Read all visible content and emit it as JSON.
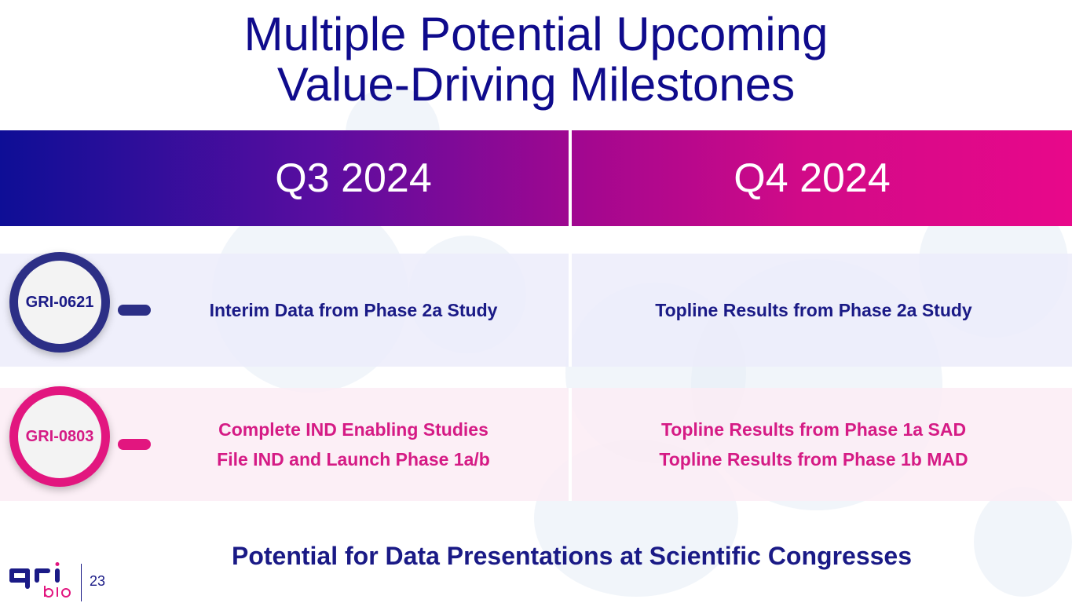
{
  "slide": {
    "title_line1": "Multiple Potential Upcoming",
    "title_line2": "Value-Driving Milestones",
    "q3_label": "Q3 2024",
    "q4_label": "Q4 2024",
    "footer": "Potential for Data Presentations at Scientific Congresses",
    "page_number": "23"
  },
  "rows": [
    {
      "program": "GRI-0621",
      "q3": [
        "Interim Data from Phase 2a Study"
      ],
      "q4": [
        "Topline Results from Phase 2a Study"
      ]
    },
    {
      "program": "GRI-0803",
      "q3": [
        "Complete IND Enabling Studies",
        "File IND and Launch Phase 1a/b"
      ],
      "q4": [
        "Topline Results from Phase 1a SAD",
        "Topline Results from Phase 1b MAD"
      ]
    }
  ],
  "logo": {
    "text_top": "gri",
    "text_bottom": "bio"
  },
  "colors": {
    "navy": "#1a1a86",
    "pink": "#d51b85",
    "band_start": "#0e0e96",
    "band_end": "#e8088a"
  }
}
